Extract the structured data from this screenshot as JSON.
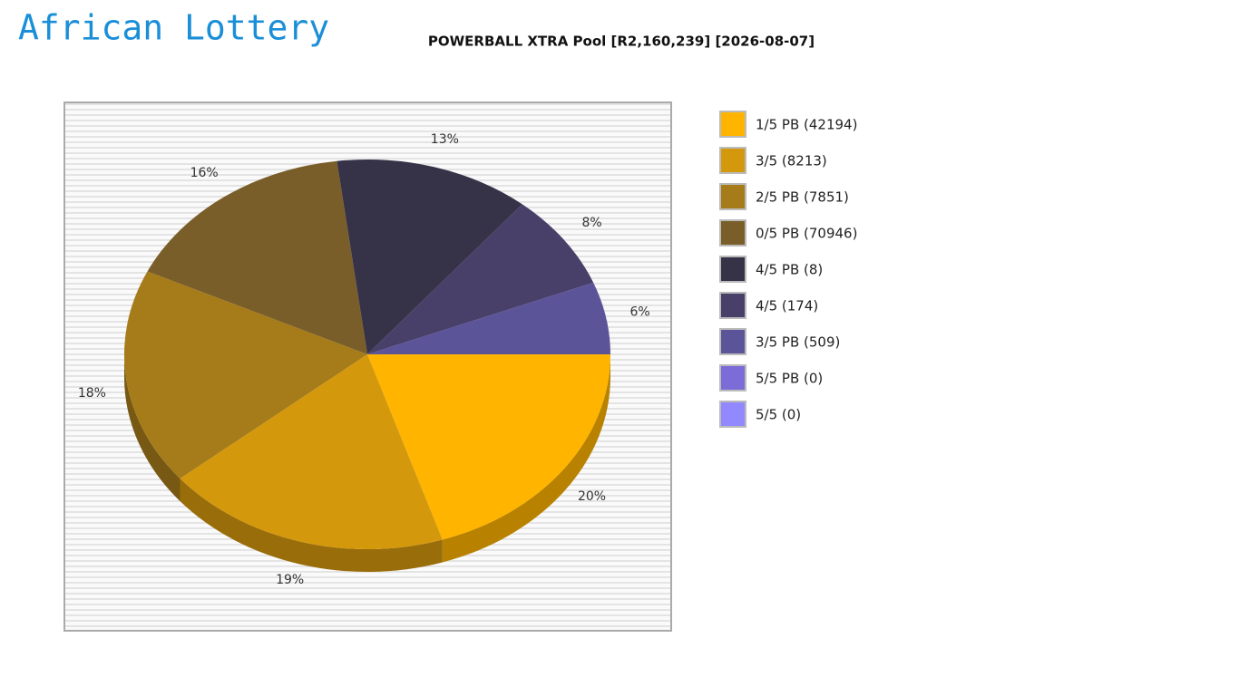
{
  "logo": "African Lottery",
  "chart_data": {
    "type": "pie",
    "title": "POWERBALL XTRA Pool [R2,160,239] [2026-08-07]",
    "categories": [
      "1/5 PB (42194)",
      "3/5 (8213)",
      "2/5 PB (7851)",
      "0/5 PB (70946)",
      "4/5 PB (8)",
      "4/5 (174)",
      "3/5 PB (509)",
      "5/5 PB (0)",
      "5/5 (0)"
    ],
    "values": [
      20,
      19,
      18,
      16,
      13,
      8,
      6,
      0,
      0
    ],
    "value_labels": [
      "20%",
      "19%",
      "18%",
      "16%",
      "13%",
      "8%",
      "6%",
      null,
      null
    ],
    "colors": [
      "#ffb400",
      "#d4980c",
      "#a67c1a",
      "#7a5e2a",
      "#363348",
      "#484068",
      "#5c5498",
      "#7c6cd8",
      "#9288ff"
    ],
    "legend": "right"
  }
}
